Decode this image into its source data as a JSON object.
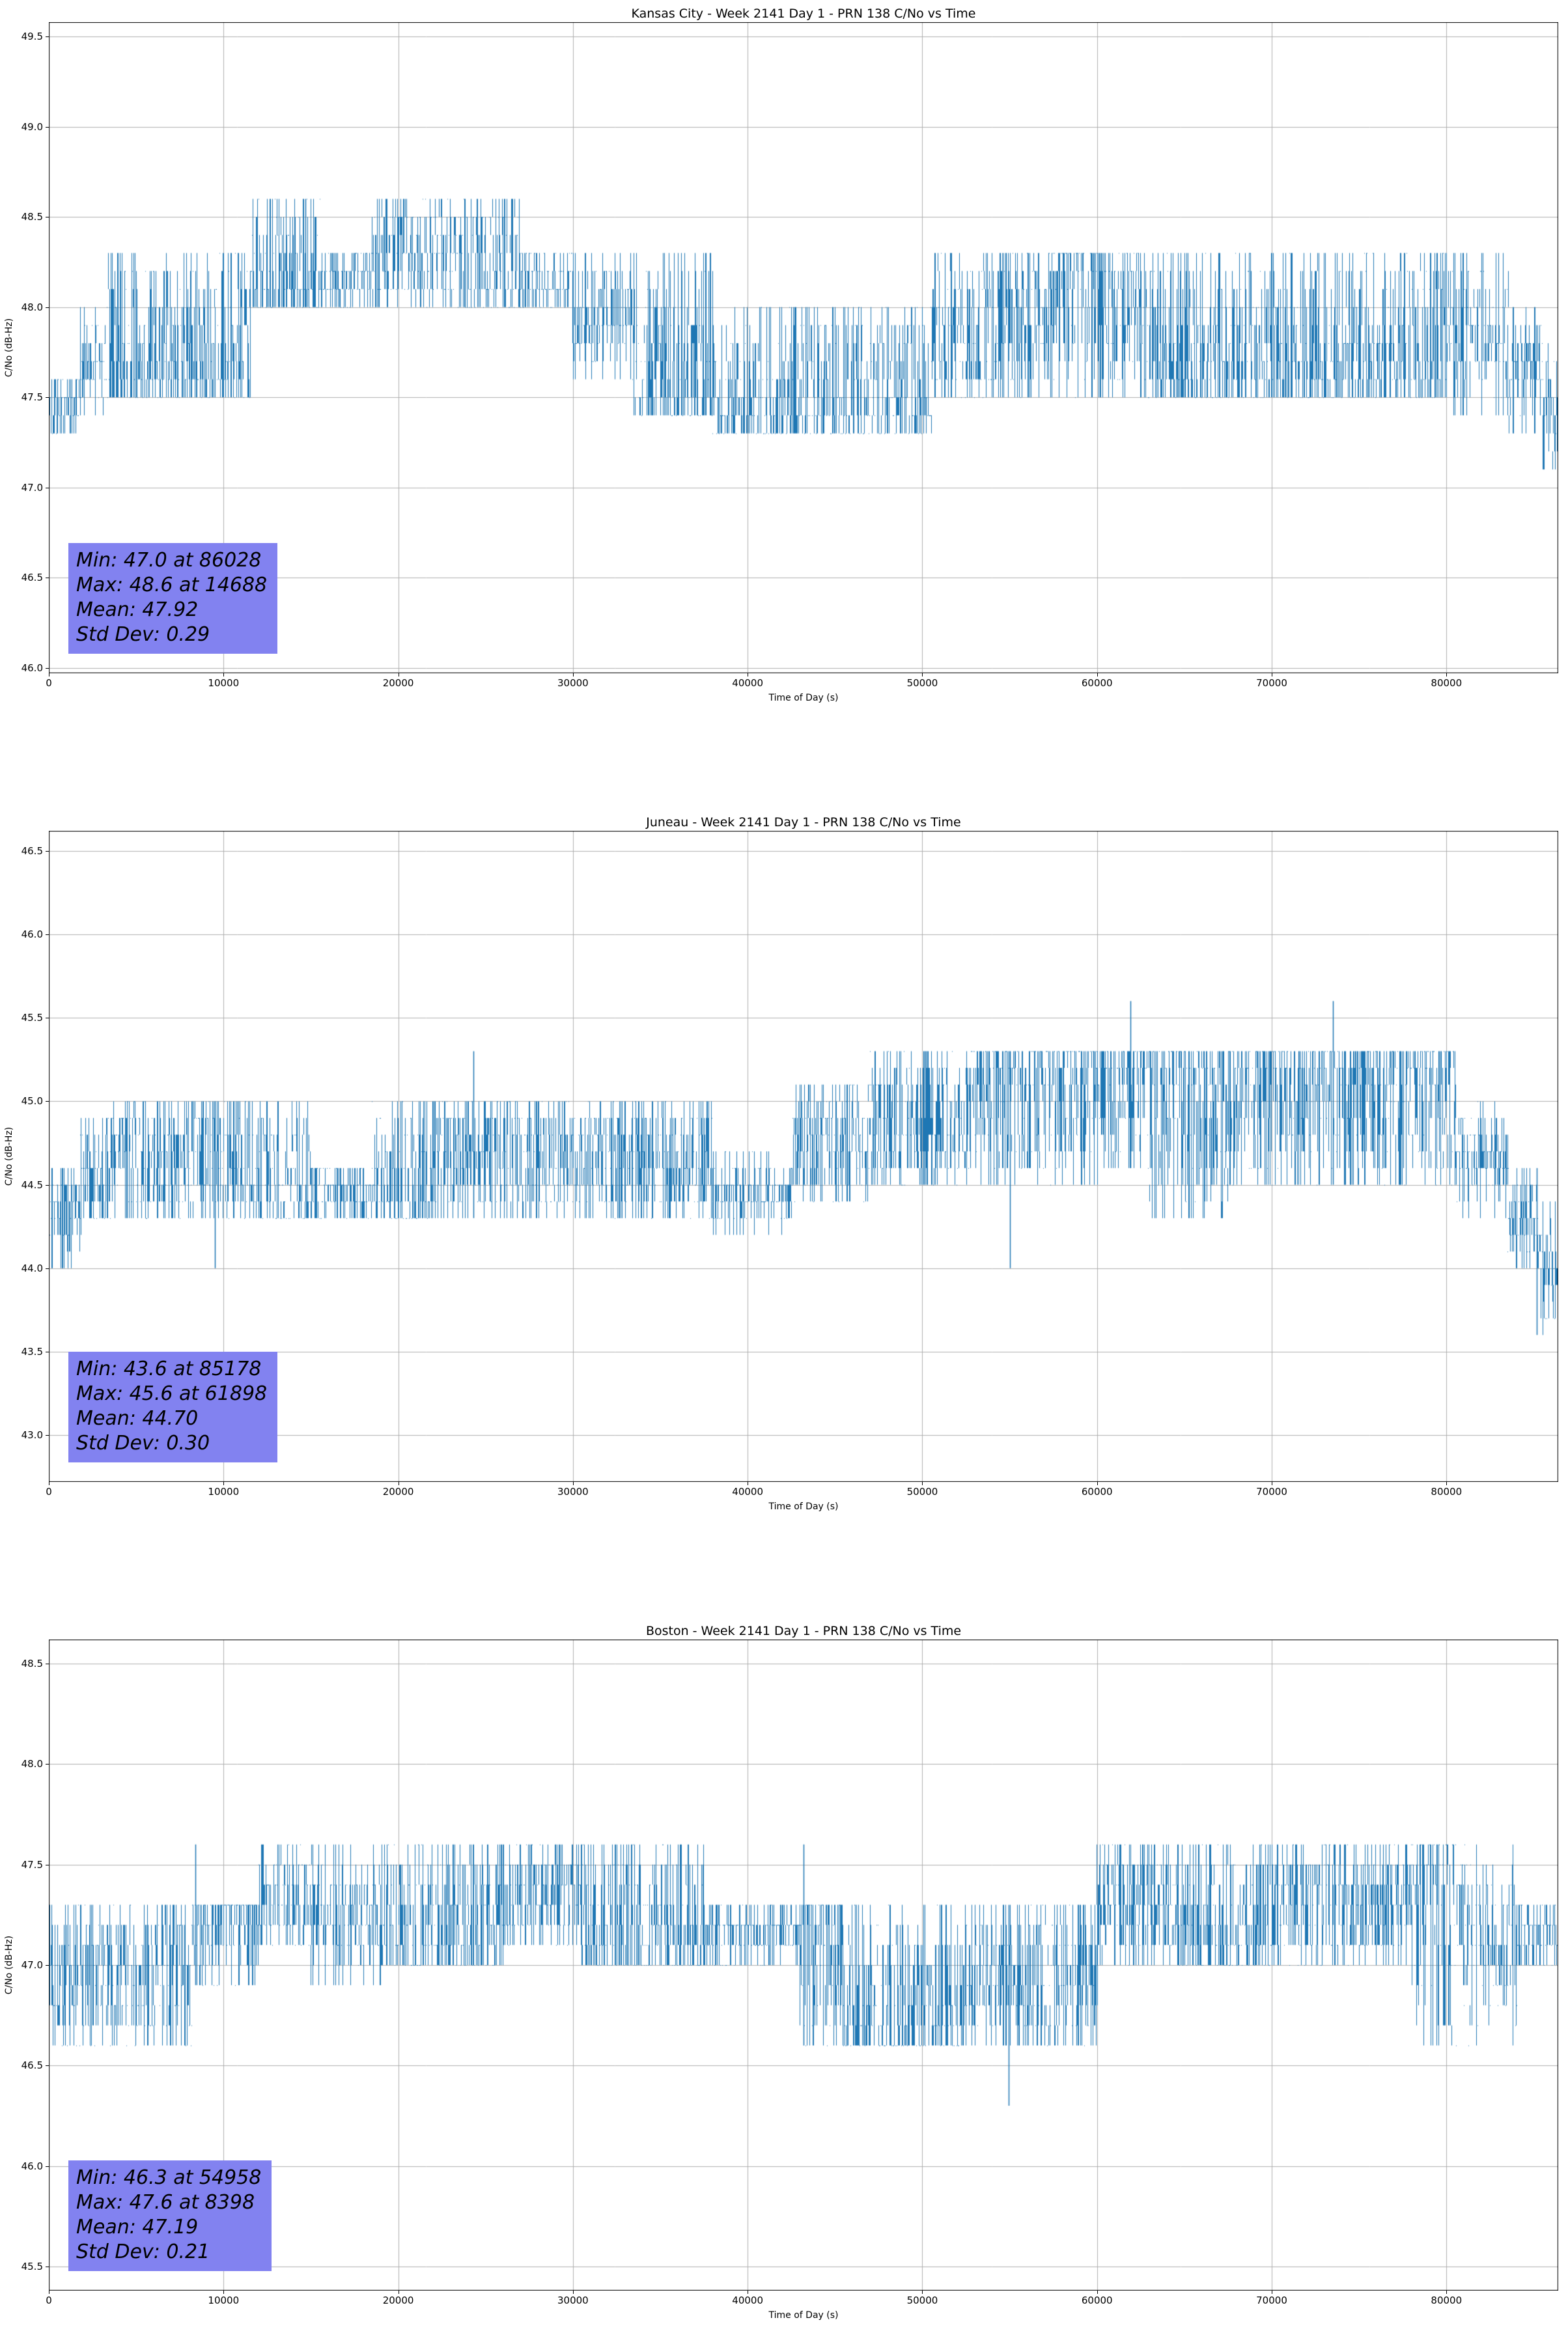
{
  "colors": {
    "line": "#1f77b4",
    "grid": "#b0b0b0",
    "axis": "#000000",
    "stats_bg": "#8282f0",
    "background": "#ffffff"
  },
  "chart_data": [
    {
      "type": "line",
      "title": "Kansas City - Week 2141 Day 1 - PRN 138 C/No vs Time",
      "xlabel": "Time of Day (s)",
      "ylabel": "C/No (dB-Hz)",
      "xlim": [
        0,
        86400
      ],
      "ylim": [
        45.97,
        49.58
      ],
      "xticks": [
        0,
        10000,
        20000,
        30000,
        40000,
        50000,
        60000,
        70000,
        80000
      ],
      "xtick_labels": [
        "0",
        "10000",
        "20000",
        "30000",
        "40000",
        "50000",
        "60000",
        "70000",
        "80000"
      ],
      "yticks": [
        46.0,
        46.5,
        47.0,
        47.5,
        48.0,
        48.5,
        49.0,
        49.5
      ],
      "ytick_labels": [
        "46.0",
        "46.5",
        "47.0",
        "47.5",
        "48.0",
        "48.5",
        "49.0",
        "49.5"
      ],
      "grid": true,
      "legend": "none",
      "line_color": "#1f77b4",
      "stats": {
        "min": 47.0,
        "min_at": 86028,
        "max": 48.6,
        "max_at": 14688,
        "mean": 47.92,
        "std_dev": 0.29
      },
      "stats_lines": [
        "Min: 47.0 at 86028",
        "Max: 48.6 at 14688",
        "Mean: 47.92",
        "Std Dev: 0.29"
      ],
      "quantization_db": 0.1,
      "envelope_segments": [
        [
          0,
          1800,
          47.3,
          47.6,
          "u"
        ],
        [
          1800,
          3200,
          47.4,
          48.0,
          "m"
        ],
        [
          3200,
          11500,
          47.5,
          48.3,
          "l"
        ],
        [
          11500,
          15500,
          48.0,
          48.6,
          "l"
        ],
        [
          15500,
          18500,
          48.0,
          48.3,
          "u"
        ],
        [
          18500,
          23500,
          48.0,
          48.6,
          "u"
        ],
        [
          23500,
          27000,
          48.0,
          48.6,
          "l"
        ],
        [
          27000,
          30000,
          48.0,
          48.3,
          "u"
        ],
        [
          30000,
          33500,
          47.6,
          48.3,
          "m"
        ],
        [
          33500,
          38000,
          47.4,
          48.3,
          "l"
        ],
        [
          38000,
          44500,
          47.3,
          48.0,
          "l"
        ],
        [
          44500,
          50500,
          47.3,
          48.0,
          "l"
        ],
        [
          50500,
          57500,
          47.5,
          48.3,
          "u"
        ],
        [
          57500,
          62500,
          47.5,
          48.3,
          "h"
        ],
        [
          62500,
          68500,
          47.5,
          48.3,
          "l"
        ],
        [
          68500,
          80000,
          47.5,
          48.3,
          "l"
        ],
        [
          80000,
          83500,
          47.4,
          48.3,
          "m"
        ],
        [
          83500,
          85500,
          47.3,
          48.0,
          "m"
        ],
        [
          85500,
          86400,
          47.0,
          47.9,
          "m"
        ]
      ],
      "spikes": [
        [
          14688,
          48.6
        ],
        [
          86028,
          47.0
        ]
      ]
    },
    {
      "type": "line",
      "title": "Juneau - Week 2141 Day 1 - PRN 138 C/No vs Time",
      "xlabel": "Time of Day (s)",
      "ylabel": "C/No (dB-Hz)",
      "xlim": [
        0,
        86400
      ],
      "ylim": [
        42.72,
        46.62
      ],
      "xticks": [
        0,
        10000,
        20000,
        30000,
        40000,
        50000,
        60000,
        70000,
        80000
      ],
      "xtick_labels": [
        "0",
        "10000",
        "20000",
        "30000",
        "40000",
        "50000",
        "60000",
        "70000",
        "80000"
      ],
      "yticks": [
        43.0,
        43.5,
        44.0,
        44.5,
        45.0,
        45.5,
        46.0,
        46.5
      ],
      "ytick_labels": [
        "43.0",
        "43.5",
        "44.0",
        "44.5",
        "45.0",
        "45.5",
        "46.0",
        "46.5"
      ],
      "grid": true,
      "legend": "none",
      "line_color": "#1f77b4",
      "stats": {
        "min": 43.6,
        "min_at": 85178,
        "max": 45.6,
        "max_at": 61898,
        "mean": 44.7,
        "std_dev": 0.3
      },
      "stats_lines": [
        "Min: 43.6 at 85178",
        "Max: 45.6 at 61898",
        "Mean: 44.70",
        "Std Dev: 0.30"
      ],
      "quantization_db": 0.1,
      "envelope_segments": [
        [
          0,
          1800,
          44.0,
          44.6,
          "m"
        ],
        [
          1800,
          3500,
          44.3,
          44.9,
          "u"
        ],
        [
          3500,
          11000,
          44.3,
          45.0,
          "u"
        ],
        [
          11000,
          15000,
          44.3,
          45.0,
          "l"
        ],
        [
          15000,
          18500,
          44.3,
          44.6,
          "u"
        ],
        [
          18500,
          22000,
          44.3,
          45.0,
          "l"
        ],
        [
          22000,
          30000,
          44.3,
          45.0,
          "u"
        ],
        [
          30000,
          38000,
          44.3,
          45.0,
          "u"
        ],
        [
          38000,
          42500,
          44.2,
          44.7,
          "m"
        ],
        [
          42500,
          47000,
          44.4,
          45.1,
          "u"
        ],
        [
          47000,
          52500,
          44.5,
          45.3,
          "u"
        ],
        [
          52500,
          60000,
          44.5,
          45.3,
          "h"
        ],
        [
          60000,
          63000,
          44.6,
          45.3,
          "h"
        ],
        [
          63000,
          67500,
          44.3,
          45.3,
          "h"
        ],
        [
          67500,
          80500,
          44.5,
          45.3,
          "h"
        ],
        [
          80500,
          83500,
          44.3,
          45.0,
          "m"
        ],
        [
          83500,
          85200,
          44.0,
          44.6,
          "m"
        ],
        [
          85200,
          86400,
          43.6,
          44.4,
          "m"
        ]
      ],
      "spikes": [
        [
          9500,
          44.0
        ],
        [
          24300,
          45.3
        ],
        [
          55000,
          44.0
        ],
        [
          61898,
          45.6
        ],
        [
          73500,
          45.6
        ],
        [
          85178,
          43.6
        ]
      ]
    },
    {
      "type": "line",
      "title": "Boston - Week 2141 Day 1 - PRN 138 C/No vs Time",
      "xlabel": "Time of Day (s)",
      "ylabel": "C/No (dB-Hz)",
      "xlim": [
        0,
        86400
      ],
      "ylim": [
        45.38,
        48.62
      ],
      "xticks": [
        0,
        10000,
        20000,
        30000,
        40000,
        50000,
        60000,
        70000,
        80000
      ],
      "xtick_labels": [
        "0",
        "10000",
        "20000",
        "30000",
        "40000",
        "50000",
        "60000",
        "70000",
        "80000"
      ],
      "yticks": [
        45.5,
        46.0,
        46.5,
        47.0,
        47.5,
        48.0,
        48.5
      ],
      "ytick_labels": [
        "45.5",
        "46.0",
        "46.5",
        "47.0",
        "47.5",
        "48.0",
        "48.5"
      ],
      "grid": true,
      "legend": "none",
      "line_color": "#1f77b4",
      "stats": {
        "min": 46.3,
        "min_at": 54958,
        "max": 47.6,
        "max_at": 8398,
        "mean": 47.19,
        "std_dev": 0.21
      },
      "stats_lines": [
        "Min: 46.3 at 54958",
        "Max: 47.6 at 8398",
        "Mean: 47.19",
        "Std Dev: 0.21"
      ],
      "quantization_db": 0.1,
      "envelope_segments": [
        [
          0,
          900,
          46.6,
          47.3,
          "u"
        ],
        [
          900,
          8200,
          46.6,
          47.3,
          "u"
        ],
        [
          8200,
          12000,
          46.9,
          47.3,
          "h"
        ],
        [
          12000,
          15000,
          47.1,
          47.6,
          "u"
        ],
        [
          15000,
          19000,
          46.9,
          47.6,
          "m"
        ],
        [
          19000,
          26000,
          47.0,
          47.6,
          "l"
        ],
        [
          26000,
          30500,
          47.1,
          47.6,
          "u"
        ],
        [
          30500,
          34500,
          47.0,
          47.6,
          "l"
        ],
        [
          34500,
          37500,
          47.0,
          47.6,
          "l"
        ],
        [
          37500,
          43000,
          47.0,
          47.3,
          "u"
        ],
        [
          43000,
          45500,
          46.6,
          47.3,
          "h"
        ],
        [
          45500,
          52500,
          46.6,
          47.3,
          "l"
        ],
        [
          52500,
          55500,
          46.6,
          47.3,
          "m"
        ],
        [
          55500,
          60000,
          46.6,
          47.3,
          "u"
        ],
        [
          60000,
          64500,
          47.0,
          47.6,
          "u"
        ],
        [
          64500,
          70000,
          47.0,
          47.6,
          "l"
        ],
        [
          70000,
          78000,
          47.0,
          47.6,
          "u"
        ],
        [
          78000,
          81000,
          46.6,
          47.6,
          "h"
        ],
        [
          81000,
          84000,
          46.6,
          47.6,
          "m"
        ],
        [
          84000,
          86400,
          47.0,
          47.3,
          "u"
        ]
      ],
      "spikes": [
        [
          8398,
          47.6
        ],
        [
          43200,
          47.6
        ],
        [
          54958,
          46.3
        ]
      ]
    }
  ]
}
